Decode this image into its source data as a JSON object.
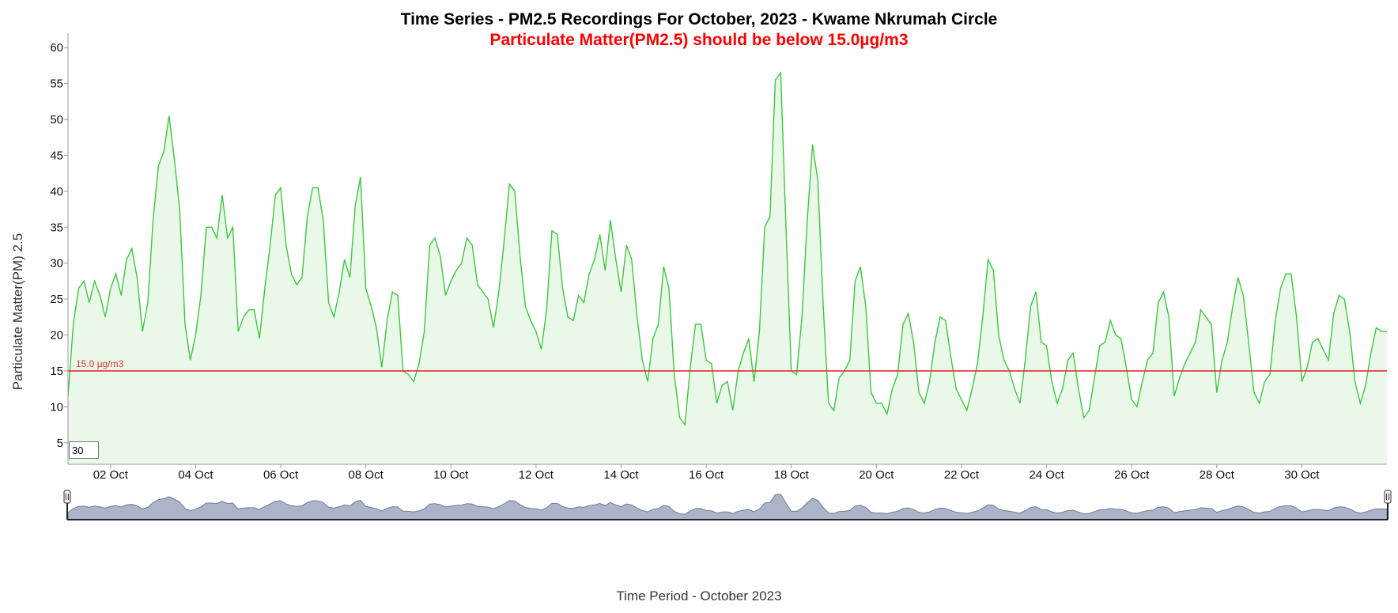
{
  "chart_data": {
    "type": "area",
    "title": "Time Series - PM2.5 Recordings For October, 2023 - Kwame Nkrumah Circle",
    "subtitle": "Particulate Matter(PM2.5) should be below 15.0µg/m3",
    "xlabel": "Time Period - October 2023",
    "ylabel": "Particulate Matter(PM) 2.5",
    "x_range": [
      "2023-10-01T00:00",
      "2023-11-01T00:00"
    ],
    "ylim": [
      2,
      62
    ],
    "y_ticks": [
      5,
      10,
      15,
      20,
      25,
      30,
      35,
      40,
      45,
      50,
      55,
      60
    ],
    "x_ticks": [
      {
        "date": "2023-10-02",
        "label": "02 Oct"
      },
      {
        "date": "2023-10-04",
        "label": "04 Oct"
      },
      {
        "date": "2023-10-06",
        "label": "06 Oct"
      },
      {
        "date": "2023-10-08",
        "label": "08 Oct"
      },
      {
        "date": "2023-10-10",
        "label": "10 Oct"
      },
      {
        "date": "2023-10-12",
        "label": "12 Oct"
      },
      {
        "date": "2023-10-14",
        "label": "14 Oct"
      },
      {
        "date": "2023-10-16",
        "label": "16 Oct"
      },
      {
        "date": "2023-10-18",
        "label": "18 Oct"
      },
      {
        "date": "2023-10-20",
        "label": "20 Oct"
      },
      {
        "date": "2023-10-22",
        "label": "22 Oct"
      },
      {
        "date": "2023-10-24",
        "label": "24 Oct"
      },
      {
        "date": "2023-10-26",
        "label": "26 Oct"
      },
      {
        "date": "2023-10-28",
        "label": "28 Oct"
      },
      {
        "date": "2023-10-30",
        "label": "30 Oct"
      }
    ],
    "threshold": {
      "value": 15.0,
      "label": "15.0 µg/m3",
      "color": "#e03030"
    },
    "colors": {
      "line": "#3cc83c",
      "fill": "#e9f8e9",
      "subtitle": "#ff0000",
      "overview": "#8f9bb5"
    },
    "grid": false,
    "rolling_window_value": "30",
    "series": [
      {
        "x": [
          "2023-10-01T00:00",
          "2023-10-01T03:00",
          "2023-10-01T06:00",
          "2023-10-01T09:00",
          "2023-10-01T12:00",
          "2023-10-01T15:00",
          "2023-10-01T18:00",
          "2023-10-01T21:00",
          "2023-10-02T00:00",
          "2023-10-02T03:00",
          "2023-10-02T06:00",
          "2023-10-02T09:00",
          "2023-10-02T12:00",
          "2023-10-02T15:00",
          "2023-10-02T18:00",
          "2023-10-02T21:00",
          "2023-10-03T00:00",
          "2023-10-03T03:00",
          "2023-10-03T06:00",
          "2023-10-03T09:00",
          "2023-10-03T12:00",
          "2023-10-03T15:00",
          "2023-10-03T18:00",
          "2023-10-03T21:00",
          "2023-10-04T00:00",
          "2023-10-04T03:00",
          "2023-10-04T06:00",
          "2023-10-04T09:00",
          "2023-10-04T12:00",
          "2023-10-04T15:00",
          "2023-10-04T18:00",
          "2023-10-04T21:00",
          "2023-10-05T00:00",
          "2023-10-05T03:00",
          "2023-10-05T06:00",
          "2023-10-05T09:00",
          "2023-10-05T12:00",
          "2023-10-05T15:00",
          "2023-10-05T18:00",
          "2023-10-05T21:00",
          "2023-10-06T00:00",
          "2023-10-06T03:00",
          "2023-10-06T06:00",
          "2023-10-06T09:00",
          "2023-10-06T12:00",
          "2023-10-06T15:00",
          "2023-10-06T18:00",
          "2023-10-06T21:00",
          "2023-10-07T00:00",
          "2023-10-07T03:00",
          "2023-10-07T06:00",
          "2023-10-07T09:00",
          "2023-10-07T12:00",
          "2023-10-07T15:00",
          "2023-10-07T18:00",
          "2023-10-07T21:00",
          "2023-10-08T00:00",
          "2023-10-08T03:00",
          "2023-10-08T06:00",
          "2023-10-08T09:00",
          "2023-10-08T12:00",
          "2023-10-08T15:00",
          "2023-10-08T18:00",
          "2023-10-08T21:00",
          "2023-10-09T00:00",
          "2023-10-09T03:00",
          "2023-10-09T06:00",
          "2023-10-09T09:00",
          "2023-10-09T12:00",
          "2023-10-09T15:00",
          "2023-10-09T18:00",
          "2023-10-09T21:00",
          "2023-10-10T00:00",
          "2023-10-10T03:00",
          "2023-10-10T06:00",
          "2023-10-10T09:00",
          "2023-10-10T12:00",
          "2023-10-10T15:00",
          "2023-10-10T18:00",
          "2023-10-10T21:00",
          "2023-10-11T00:00",
          "2023-10-11T03:00",
          "2023-10-11T06:00",
          "2023-10-11T09:00",
          "2023-10-11T12:00",
          "2023-10-11T15:00",
          "2023-10-11T18:00",
          "2023-10-11T21:00",
          "2023-10-12T00:00",
          "2023-10-12T03:00",
          "2023-10-12T06:00",
          "2023-10-12T09:00",
          "2023-10-12T12:00",
          "2023-10-12T15:00",
          "2023-10-12T18:00",
          "2023-10-12T21:00",
          "2023-10-13T00:00",
          "2023-10-13T03:00",
          "2023-10-13T06:00",
          "2023-10-13T09:00",
          "2023-10-13T12:00",
          "2023-10-13T15:00",
          "2023-10-13T18:00",
          "2023-10-13T21:00",
          "2023-10-14T00:00",
          "2023-10-14T03:00",
          "2023-10-14T06:00",
          "2023-10-14T09:00",
          "2023-10-14T12:00",
          "2023-10-14T15:00",
          "2023-10-14T18:00",
          "2023-10-14T21:00",
          "2023-10-15T00:00",
          "2023-10-15T03:00",
          "2023-10-15T06:00",
          "2023-10-15T09:00",
          "2023-10-15T12:00",
          "2023-10-15T15:00",
          "2023-10-15T18:00",
          "2023-10-15T21:00",
          "2023-10-16T00:00",
          "2023-10-16T03:00",
          "2023-10-16T06:00",
          "2023-10-16T09:00",
          "2023-10-16T12:00",
          "2023-10-16T15:00",
          "2023-10-16T18:00",
          "2023-10-16T21:00",
          "2023-10-17T00:00",
          "2023-10-17T03:00",
          "2023-10-17T06:00",
          "2023-10-17T09:00",
          "2023-10-17T12:00",
          "2023-10-17T15:00",
          "2023-10-17T18:00",
          "2023-10-17T21:00",
          "2023-10-18T00:00",
          "2023-10-18T03:00",
          "2023-10-18T06:00",
          "2023-10-18T09:00",
          "2023-10-18T12:00",
          "2023-10-18T15:00",
          "2023-10-18T18:00",
          "2023-10-18T21:00",
          "2023-10-19T00:00",
          "2023-10-19T03:00",
          "2023-10-19T06:00",
          "2023-10-19T09:00",
          "2023-10-19T12:00",
          "2023-10-19T15:00",
          "2023-10-19T18:00",
          "2023-10-19T21:00",
          "2023-10-20T00:00",
          "2023-10-20T03:00",
          "2023-10-20T06:00",
          "2023-10-20T09:00",
          "2023-10-20T12:00",
          "2023-10-20T15:00",
          "2023-10-20T18:00",
          "2023-10-20T21:00",
          "2023-10-21T00:00",
          "2023-10-21T03:00",
          "2023-10-21T06:00",
          "2023-10-21T09:00",
          "2023-10-21T12:00",
          "2023-10-21T15:00",
          "2023-10-21T18:00",
          "2023-10-21T21:00",
          "2023-10-22T00:00",
          "2023-10-22T03:00",
          "2023-10-22T06:00",
          "2023-10-22T09:00",
          "2023-10-22T12:00",
          "2023-10-22T15:00",
          "2023-10-22T18:00",
          "2023-10-22T21:00",
          "2023-10-23T00:00",
          "2023-10-23T03:00",
          "2023-10-23T06:00",
          "2023-10-23T09:00",
          "2023-10-23T12:00",
          "2023-10-23T15:00",
          "2023-10-23T18:00",
          "2023-10-23T21:00",
          "2023-10-24T00:00",
          "2023-10-24T03:00",
          "2023-10-24T06:00",
          "2023-10-24T09:00",
          "2023-10-24T12:00",
          "2023-10-24T15:00",
          "2023-10-24T18:00",
          "2023-10-24T21:00",
          "2023-10-25T00:00",
          "2023-10-25T03:00",
          "2023-10-25T06:00",
          "2023-10-25T09:00",
          "2023-10-25T12:00",
          "2023-10-25T15:00",
          "2023-10-25T18:00",
          "2023-10-25T21:00",
          "2023-10-26T00:00",
          "2023-10-26T03:00",
          "2023-10-26T06:00",
          "2023-10-26T09:00",
          "2023-10-26T12:00",
          "2023-10-26T15:00",
          "2023-10-26T18:00",
          "2023-10-26T21:00",
          "2023-10-27T00:00",
          "2023-10-27T03:00",
          "2023-10-27T06:00",
          "2023-10-27T09:00",
          "2023-10-27T12:00",
          "2023-10-27T15:00",
          "2023-10-27T18:00",
          "2023-10-27T21:00",
          "2023-10-28T00:00",
          "2023-10-28T03:00",
          "2023-10-28T06:00",
          "2023-10-28T09:00",
          "2023-10-28T12:00",
          "2023-10-28T15:00",
          "2023-10-28T18:00",
          "2023-10-28T21:00",
          "2023-10-29T00:00",
          "2023-10-29T03:00",
          "2023-10-29T06:00",
          "2023-10-29T09:00",
          "2023-10-29T12:00",
          "2023-10-29T15:00",
          "2023-10-29T18:00",
          "2023-10-29T21:00",
          "2023-10-30T00:00",
          "2023-10-30T03:00",
          "2023-10-30T06:00",
          "2023-10-30T09:00",
          "2023-10-30T12:00",
          "2023-10-30T15:00",
          "2023-10-30T18:00",
          "2023-10-30T21:00",
          "2023-10-31T00:00",
          "2023-10-31T03:00",
          "2023-10-31T06:00",
          "2023-10-31T09:00",
          "2023-10-31T12:00",
          "2023-10-31T15:00",
          "2023-10-31T18:00",
          "2023-10-31T21:00",
          "2023-11-01T00:00"
        ],
        "values": [
          11.5,
          21.5,
          26.5,
          27.5,
          24.5,
          27.5,
          25.5,
          22.5,
          26.5,
          28.5,
          25.5,
          30.5,
          32.0,
          28.0,
          20.5,
          24.5,
          36.0,
          43.5,
          45.5,
          50.5,
          44.5,
          37.5,
          21.5,
          16.5,
          20.0,
          25.5,
          35.0,
          35.0,
          33.5,
          39.5,
          33.5,
          35.0,
          20.5,
          22.5,
          23.5,
          23.5,
          19.5,
          26.5,
          32.5,
          39.5,
          40.5,
          32.5,
          28.5,
          27.0,
          28.0,
          36.5,
          40.5,
          40.5,
          36.0,
          24.5,
          22.5,
          26.0,
          30.5,
          28.0,
          38.0,
          42.0,
          26.5,
          24.0,
          21.0,
          15.5,
          22.0,
          26.0,
          25.5,
          15.0,
          14.5,
          13.5,
          16.0,
          20.5,
          32.5,
          33.5,
          31.0,
          25.5,
          27.5,
          29.0,
          30.0,
          33.5,
          32.5,
          27.0,
          26.0,
          25.0,
          21.0,
          26.0,
          33.0,
          41.0,
          40.0,
          31.0,
          24.0,
          22.0,
          20.5,
          18.0,
          23.5,
          34.5,
          34.0,
          26.5,
          22.5,
          22.0,
          25.5,
          24.5,
          28.5,
          30.5,
          34.0,
          29.0,
          36.0,
          30.5,
          26.0,
          32.5,
          30.5,
          22.5,
          16.5,
          13.5,
          19.5,
          21.5,
          29.5,
          26.5,
          14.5,
          8.5,
          7.5,
          15.5,
          21.5,
          21.5,
          16.5,
          16.0,
          10.5,
          13.0,
          13.5,
          9.5,
          15.0,
          17.5,
          19.5,
          13.5,
          20.5,
          35.0,
          36.5,
          55.5,
          56.5,
          35.0,
          15.0,
          14.5,
          22.5,
          36.0,
          46.5,
          41.5,
          24.0,
          10.5,
          9.5,
          14.0,
          15.0,
          16.5,
          27.5,
          29.5,
          24.0,
          12.0,
          10.5,
          10.5,
          9.0,
          12.5,
          14.5,
          21.5,
          23.0,
          19.0,
          12.0,
          10.5,
          13.5,
          19.0,
          22.5,
          22.0,
          17.0,
          12.5,
          11.0,
          9.5,
          12.5,
          16.0,
          22.5,
          30.5,
          29.0,
          20.0,
          16.5,
          15.0,
          12.5,
          10.5,
          16.5,
          24.0,
          26.0,
          19.0,
          18.5,
          13.5,
          10.5,
          12.5,
          16.5,
          17.5,
          12.5,
          8.5,
          9.5,
          14.0,
          18.5,
          19.0,
          22.0,
          20.0,
          19.5,
          15.5,
          11.0,
          10.0,
          13.5,
          16.5,
          17.5,
          24.5,
          26.0,
          22.5,
          11.5,
          14.0,
          16.0,
          17.5,
          19.0,
          23.5,
          22.5,
          21.5,
          12.0,
          16.5,
          19.0,
          24.0,
          28.0,
          25.5,
          19.0,
          12.0,
          10.5,
          13.5,
          14.5,
          22.0,
          26.5,
          28.5,
          28.5,
          22.5,
          13.5,
          15.5,
          19.0,
          19.5,
          18.0,
          16.5,
          23.0,
          25.5,
          25.0,
          20.5,
          13.5,
          10.5,
          13.0,
          17.5,
          21.0,
          20.5,
          20.5
        ]
      }
    ]
  },
  "controls": {
    "rolling_window": "30"
  }
}
